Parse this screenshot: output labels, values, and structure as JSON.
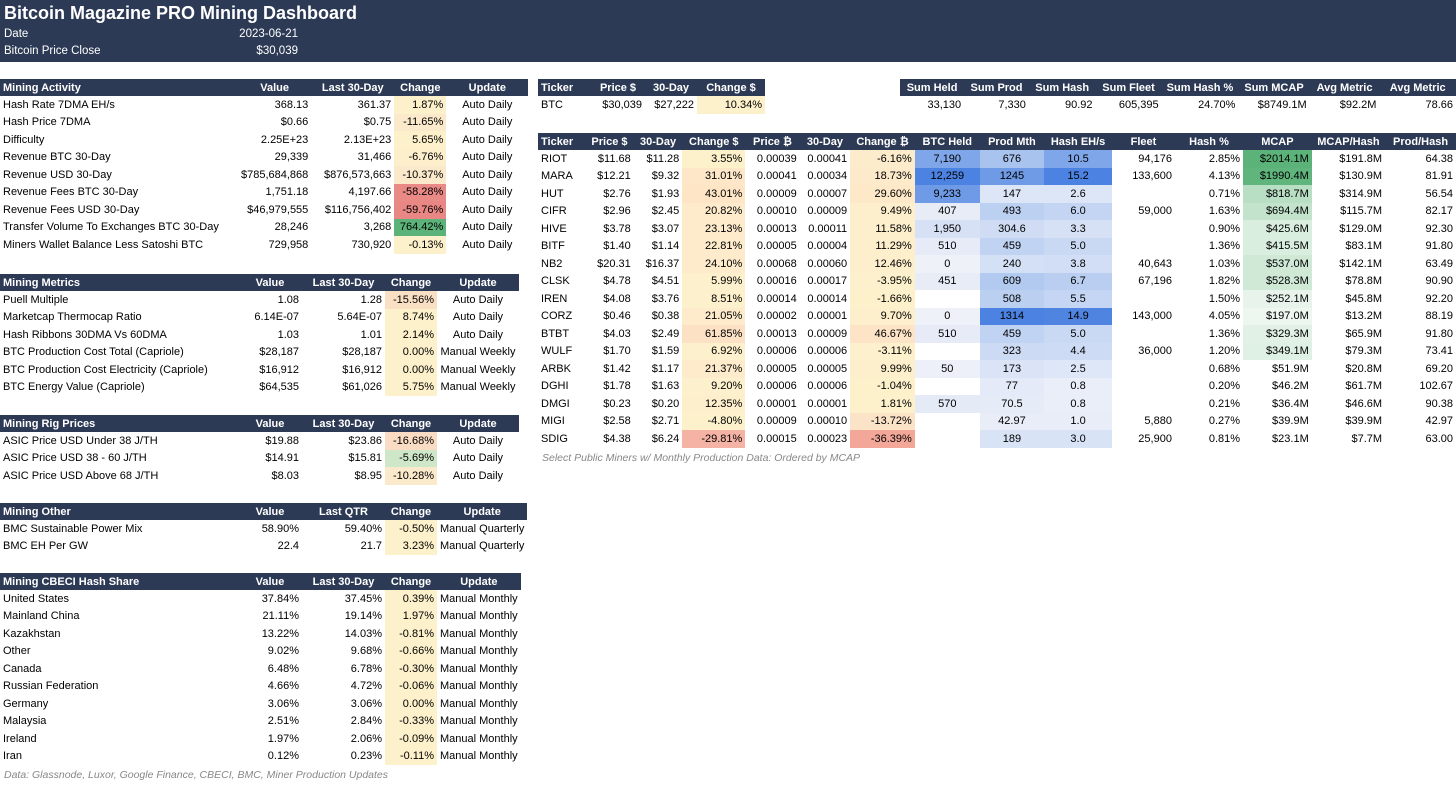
{
  "header": {
    "title": "Bitcoin Magazine PRO Mining Dashboard",
    "date_label": "Date",
    "date_value": "2023-06-21",
    "price_label": "Bitcoin Price Close",
    "price_value": "$30,039"
  },
  "colors": {
    "header_bg": "#2d3a55",
    "neutral_yellow": "#fdf1cc",
    "positive_green": "#5cb37a",
    "negative_red": "#ea8a87",
    "blue_strong": "#4c82e1",
    "blue_light": "#dde6f7"
  },
  "activity": {
    "headers": [
      "Mining Activity",
      "Value",
      "Last 30-Day",
      "Change",
      "Update"
    ],
    "rows": [
      {
        "name": "Hash Rate 7DMA EH/s",
        "value": "368.13",
        "last": "361.37",
        "change": "1.87%",
        "update": "Auto Daily",
        "bg": "#fdf1cc"
      },
      {
        "name": "Hash Price 7DMA",
        "value": "$0.66",
        "last": "$0.75",
        "change": "-11.65%",
        "update": "Auto Daily",
        "bg": "#fbe9cb"
      },
      {
        "name": "Difficulty",
        "value": "2.25E+23",
        "last": "2.13E+23",
        "change": "5.65%",
        "update": "Auto Daily",
        "bg": "#fdf1cc"
      },
      {
        "name": "Revenue BTC 30-Day",
        "value": "29,339",
        "last": "31,466",
        "change": "-6.76%",
        "update": "Auto Daily",
        "bg": "#fdefcc"
      },
      {
        "name": "Revenue USD 30-Day",
        "value": "$785,684,868",
        "last": "$876,573,663",
        "change": "-10.37%",
        "update": "Auto Daily",
        "bg": "#fbe9cb"
      },
      {
        "name": "Revenue Fees BTC 30-Day",
        "value": "1,751.18",
        "last": "4,197.66",
        "change": "-58.28%",
        "update": "Auto Daily",
        "bg": "#ea8a87"
      },
      {
        "name": "Revenue Fees USD 30-Day",
        "value": "$46,979,555",
        "last": "$116,756,402",
        "change": "-59.76%",
        "update": "Auto Daily",
        "bg": "#e98784"
      },
      {
        "name": "Transfer Volume To Exchanges BTC 30-Day",
        "value": "28,246",
        "last": "3,268",
        "change": "764.42%",
        "update": "Auto Daily",
        "bg": "#5cb37a"
      },
      {
        "name": "Miners Wallet Balance Less Satoshi BTC",
        "value": "729,958",
        "last": "730,920",
        "change": "-0.13%",
        "update": "Auto Daily",
        "bg": "#fdf1cc"
      }
    ]
  },
  "metrics": {
    "headers": [
      "Mining Metrics",
      "Value",
      "Last 30-Day",
      "Change",
      "Update"
    ],
    "rows": [
      {
        "name": "Puell Multiple",
        "value": "1.08",
        "last": "1.28",
        "change": "-15.56%",
        "update": "Auto Daily",
        "bg": "#f9dfc4"
      },
      {
        "name": "Marketcap Thermocap Ratio",
        "value": "6.14E-07",
        "last": "5.64E-07",
        "change": "8.74%",
        "update": "Auto Daily",
        "bg": "#fdf1cc"
      },
      {
        "name": "Hash Ribbons 30DMA Vs 60DMA",
        "value": "1.03",
        "last": "1.01",
        "change": "2.14%",
        "update": "Auto Daily",
        "bg": "#fdf1cc"
      },
      {
        "name": "BTC Production Cost Total (Capriole)",
        "value": "$28,187",
        "last": "$28,187",
        "change": "0.00%",
        "update": "Manual Weekly",
        "bg": "#fdf1cc"
      },
      {
        "name": "BTC Production Cost Electricity (Capriole)",
        "value": "$16,912",
        "last": "$16,912",
        "change": "0.00%",
        "update": "Manual Weekly",
        "bg": "#fdf1cc"
      },
      {
        "name": "BTC Energy Value (Capriole)",
        "value": "$64,535",
        "last": "$61,026",
        "change": "5.75%",
        "update": "Manual Weekly",
        "bg": "#fdf1cc"
      }
    ]
  },
  "rigs": {
    "headers": [
      "Mining Rig Prices",
      "Value",
      "Last 30-Day",
      "Change",
      "Update"
    ],
    "rows": [
      {
        "name": "ASIC Price USD Under 38 J/TH",
        "value": "$19.88",
        "last": "$23.86",
        "change": "-16.68%",
        "update": "Auto Daily",
        "bg": "#f9dcc3"
      },
      {
        "name": "ASIC Price USD 38 - 60 J/TH",
        "value": "$14.91",
        "last": "$15.81",
        "change": "-5.69%",
        "update": "Auto Daily",
        "bg": "#cfe7c9"
      },
      {
        "name": "ASIC Price USD Above 68 J/TH",
        "value": "$8.03",
        "last": "$8.95",
        "change": "-10.28%",
        "update": "Auto Daily",
        "bg": "#fbe9cb"
      }
    ]
  },
  "other": {
    "headers": [
      "Mining Other",
      "Value",
      "Last QTR",
      "Change",
      "Update"
    ],
    "rows": [
      {
        "name": "BMC Sustainable Power Mix",
        "value": "58.90%",
        "last": "59.40%",
        "change": "-0.50%",
        "update": "Manual Quarterly",
        "bg": "#fdf1cc"
      },
      {
        "name": "BMC EH Per GW",
        "value": "22.4",
        "last": "21.7",
        "change": "3.23%",
        "update": "Manual Quarterly",
        "bg": "#fdf1cc"
      }
    ]
  },
  "cbeci": {
    "headers": [
      "Mining CBECI Hash Share",
      "Value",
      "Last 30-Day",
      "Change",
      "Update"
    ],
    "rows": [
      {
        "name": "United States",
        "value": "37.84%",
        "last": "37.45%",
        "change": "0.39%",
        "update": "Manual Monthly",
        "bg": "#fdf1cc"
      },
      {
        "name": "Mainland China",
        "value": "21.11%",
        "last": "19.14%",
        "change": "1.97%",
        "update": "Manual Monthly",
        "bg": "#fdf1cc"
      },
      {
        "name": "Kazakhstan",
        "value": "13.22%",
        "last": "14.03%",
        "change": "-0.81%",
        "update": "Manual Monthly",
        "bg": "#fdf1cc"
      },
      {
        "name": "Other",
        "value": "9.02%",
        "last": "9.68%",
        "change": "-0.66%",
        "update": "Manual Monthly",
        "bg": "#fdf1cc"
      },
      {
        "name": "Canada",
        "value": "6.48%",
        "last": "6.78%",
        "change": "-0.30%",
        "update": "Manual Monthly",
        "bg": "#fdf1cc"
      },
      {
        "name": "Russian Federation",
        "value": "4.66%",
        "last": "4.72%",
        "change": "-0.06%",
        "update": "Manual Monthly",
        "bg": "#fdf1cc"
      },
      {
        "name": "Germany",
        "value": "3.06%",
        "last": "3.06%",
        "change": "0.00%",
        "update": "Manual Monthly",
        "bg": "#fdf1cc"
      },
      {
        "name": "Malaysia",
        "value": "2.51%",
        "last": "2.84%",
        "change": "-0.33%",
        "update": "Manual Monthly",
        "bg": "#fdf1cc"
      },
      {
        "name": "Ireland",
        "value": "1.97%",
        "last": "2.06%",
        "change": "-0.09%",
        "update": "Manual Monthly",
        "bg": "#fdf1cc"
      },
      {
        "name": "Iran",
        "value": "0.12%",
        "last": "0.23%",
        "change": "-0.11%",
        "update": "Manual Monthly",
        "bg": "#fdf1cc"
      }
    ]
  },
  "left_note": "Data: Glassnode, Luxor, Google Finance, CBECI, BMC, Miner Production Updates",
  "btc_table": {
    "headers": [
      "Ticker",
      "Price $",
      "30-Day",
      "Change $"
    ],
    "row": {
      "ticker": "BTC",
      "price": "$30,039",
      "d30": "$27,222",
      "change": "10.34%",
      "bg": "#fdf1cc"
    }
  },
  "sums": {
    "headers": [
      "Sum Held",
      "Sum Prod",
      "Sum Hash",
      "Sum Fleet",
      "Sum Hash %",
      "Sum MCAP",
      "Avg Metric",
      "Avg Metric"
    ],
    "values": [
      "33,130",
      "7,330",
      "90.92",
      "605,395",
      "24.70%",
      "$8749.1M",
      "$92.2M",
      "78.66"
    ]
  },
  "miners": {
    "headers": [
      "Ticker",
      "Price $",
      "30-Day",
      "Change $",
      "Price ₿",
      "30-Day",
      "Change ₿",
      "BTC Held",
      "Prod Mth",
      "Hash EH/s",
      "Fleet",
      "Hash %",
      "MCAP",
      "MCAP/Hash",
      "Prod/Hash"
    ],
    "rows": [
      {
        "c": [
          "RIOT",
          "$11.68",
          "$11.28",
          "3.55%",
          "0.00039",
          "0.00041",
          "-6.16%",
          "7,190",
          "676",
          "10.5",
          "94,176",
          "2.85%",
          "$2014.1M",
          "$191.8M",
          "64.38"
        ],
        "chg_usd_bg": "#fdf1cc",
        "chg_btc_bg": "#fdeccc",
        "held_bg": "#7fa6e8",
        "prod_bg": "#a9c3ef",
        "hash_bg": "#7fa6e8",
        "mcap_bg": "#5cb37a"
      },
      {
        "c": [
          "MARA",
          "$12.21",
          "$9.32",
          "31.01%",
          "0.00041",
          "0.00034",
          "18.73%",
          "12,259",
          "1245",
          "15.2",
          "133,600",
          "4.13%",
          "$1990.4M",
          "$130.9M",
          "81.91"
        ],
        "chg_usd_bg": "#fde7c8",
        "chg_btc_bg": "#fdeacb",
        "held_bg": "#4c82e1",
        "prod_bg": "#6f9ae5",
        "hash_bg": "#4c82e1",
        "mcap_bg": "#60b57d"
      },
      {
        "c": [
          "HUT",
          "$2.76",
          "$1.93",
          "43.01%",
          "0.00009",
          "0.00007",
          "29.60%",
          "9,233",
          "147",
          "2.6",
          "",
          "0.71%",
          "$818.7M",
          "$314.9M",
          "56.54"
        ],
        "chg_usd_bg": "#fde5c6",
        "chg_btc_bg": "#fde8c8",
        "held_bg": "#6f9ae5",
        "prod_bg": "#dde6f7",
        "hash_bg": "#dde6f7",
        "mcap_bg": "#b8dec4"
      },
      {
        "c": [
          "CIFR",
          "$2.96",
          "$2.45",
          "20.82%",
          "0.00010",
          "0.00009",
          "9.49%",
          "407",
          "493",
          "6.0",
          "59,000",
          "1.63%",
          "$694.4M",
          "$115.7M",
          "82.17"
        ],
        "chg_usd_bg": "#fdebcb",
        "chg_btc_bg": "#fdefcc",
        "held_bg": "#e7ecf7",
        "prod_bg": "#bcd0f2",
        "hash_bg": "#c3d5f3",
        "mcap_bg": "#c3e3cd"
      },
      {
        "c": [
          "HIVE",
          "$3.78",
          "$3.07",
          "23.13%",
          "0.00013",
          "0.00011",
          "11.58%",
          "1,950",
          "304.6",
          "3.3",
          "",
          "0.90%",
          "$425.6M",
          "$129.0M",
          "92.30"
        ],
        "chg_usd_bg": "#fdebcb",
        "chg_btc_bg": "#fdeecc",
        "held_bg": "#d6e1f5",
        "prod_bg": "#cfdcf4",
        "hash_bg": "#d6e1f5",
        "mcap_bg": "#d9eedf"
      },
      {
        "c": [
          "BITF",
          "$1.40",
          "$1.14",
          "22.81%",
          "0.00005",
          "0.00004",
          "11.29%",
          "510",
          "459",
          "5.0",
          "",
          "1.36%",
          "$415.5M",
          "$83.1M",
          "91.80"
        ],
        "chg_usd_bg": "#fdebcb",
        "chg_btc_bg": "#fdeecc",
        "held_bg": "#e6ebf7",
        "prod_bg": "#c0d3f2",
        "hash_bg": "#c9d9f3",
        "mcap_bg": "#daeee0"
      },
      {
        "c": [
          "NB2",
          "$20.31",
          "$16.37",
          "24.10%",
          "0.00068",
          "0.00060",
          "12.46%",
          "0",
          "240",
          "3.8",
          "40,643",
          "1.03%",
          "$537.0M",
          "$142.1M",
          "63.49"
        ],
        "chg_usd_bg": "#fdebcb",
        "chg_btc_bg": "#fdeecc",
        "held_bg": "#eef1f8",
        "prod_bg": "#d4e0f5",
        "hash_bg": "#d2def5",
        "mcap_bg": "#cfe9d6"
      },
      {
        "c": [
          "CLSK",
          "$4.78",
          "$4.51",
          "5.99%",
          "0.00016",
          "0.00017",
          "-3.95%",
          "451",
          "609",
          "6.7",
          "67,196",
          "1.82%",
          "$528.3M",
          "$78.8M",
          "90.90"
        ],
        "chg_usd_bg": "#fdf0cc",
        "chg_btc_bg": "#fdf0cc",
        "held_bg": "#e7ecf7",
        "prod_bg": "#b2caf0",
        "hash_bg": "#b9cef1",
        "mcap_bg": "#d0e9d7"
      },
      {
        "c": [
          "IREN",
          "$4.08",
          "$3.76",
          "8.51%",
          "0.00014",
          "0.00014",
          "-1.66%",
          "",
          "508",
          "5.5",
          "",
          "1.50%",
          "$252.1M",
          "$45.8M",
          "92.20"
        ],
        "chg_usd_bg": "#fdf0cc",
        "chg_btc_bg": "#fdf1cc",
        "held_bg": "#ffffff",
        "prod_bg": "#bbcff1",
        "hash_bg": "#c4d6f3",
        "mcap_bg": "#e8f4eb"
      },
      {
        "c": [
          "CORZ",
          "$0.46",
          "$0.38",
          "21.05%",
          "0.00002",
          "0.00001",
          "9.70%",
          "0",
          "1314",
          "14.9",
          "143,000",
          "4.05%",
          "$197.0M",
          "$13.2M",
          "88.19"
        ],
        "chg_usd_bg": "#fdebcb",
        "chg_btc_bg": "#fdefcc",
        "held_bg": "#eef1f8",
        "prod_bg": "#4c82e1",
        "hash_bg": "#4f84e1",
        "mcap_bg": "#edf6ef"
      },
      {
        "c": [
          "BTBT",
          "$4.03",
          "$2.49",
          "61.85%",
          "0.00013",
          "0.00009",
          "46.67%",
          "510",
          "459",
          "5.0",
          "",
          "1.36%",
          "$329.3M",
          "$65.9M",
          "91.80"
        ],
        "chg_usd_bg": "#fce1c4",
        "chg_btc_bg": "#fde4c6",
        "held_bg": "#e6ebf7",
        "prod_bg": "#c0d3f2",
        "hash_bg": "#c9d9f3",
        "mcap_bg": "#e1f1e6"
      },
      {
        "c": [
          "WULF",
          "$1.70",
          "$1.59",
          "6.92%",
          "0.00006",
          "0.00006",
          "-3.11%",
          "",
          "323",
          "4.4",
          "36,000",
          "1.20%",
          "$349.1M",
          "$79.3M",
          "73.41"
        ],
        "chg_usd_bg": "#fdf0cc",
        "chg_btc_bg": "#fdf0cc",
        "held_bg": "#ffffff",
        "prod_bg": "#ccdaf4",
        "hash_bg": "#cddbf4",
        "mcap_bg": "#dff0e4"
      },
      {
        "c": [
          "ARBK",
          "$1.42",
          "$1.17",
          "21.37%",
          "0.00005",
          "0.00005",
          "9.99%",
          "50",
          "173",
          "2.5",
          "",
          "0.68%",
          "$51.9M",
          "$20.8M",
          "69.20"
        ],
        "chg_usd_bg": "#fdebcb",
        "chg_btc_bg": "#fdefcc",
        "held_bg": "#edf0f8",
        "prod_bg": "#dae4f6",
        "hash_bg": "#dee7f7",
        "mcap_bg": "#ffffff"
      },
      {
        "c": [
          "DGHI",
          "$1.78",
          "$1.63",
          "9.20%",
          "0.00006",
          "0.00006",
          "-1.04%",
          "",
          "77",
          "0.8",
          "",
          "0.20%",
          "$46.2M",
          "$61.7M",
          "102.67"
        ],
        "chg_usd_bg": "#fdf0cc",
        "chg_btc_bg": "#fdf1cc",
        "held_bg": "#ffffff",
        "prod_bg": "#e4eaf7",
        "hash_bg": "#eaeef8",
        "mcap_bg": "#ffffff"
      },
      {
        "c": [
          "DMGI",
          "$0.23",
          "$0.20",
          "12.35%",
          "0.00001",
          "0.00001",
          "1.81%",
          "570",
          "70.5",
          "0.8",
          "",
          "0.21%",
          "$36.4M",
          "$46.6M",
          "90.38"
        ],
        "chg_usd_bg": "#fdeecc",
        "chg_btc_bg": "#fdf1cc",
        "held_bg": "#e5eaf7",
        "prod_bg": "#e5ebf7",
        "hash_bg": "#eaeef8",
        "mcap_bg": "#ffffff"
      },
      {
        "c": [
          "MIGI",
          "$2.58",
          "$2.71",
          "-4.80%",
          "0.00009",
          "0.00010",
          "-13.72%",
          "",
          "42.97",
          "1.0",
          "5,880",
          "0.27%",
          "$39.9M",
          "$39.9M",
          "42.97"
        ],
        "chg_usd_bg": "#fdf1cc",
        "chg_btc_bg": "#fbe3c8",
        "held_bg": "#ffffff",
        "prod_bg": "#e8edf8",
        "hash_bg": "#e8edf8",
        "mcap_bg": "#ffffff"
      },
      {
        "c": [
          "SDIG",
          "$4.38",
          "$6.24",
          "-29.81%",
          "0.00015",
          "0.00023",
          "-36.39%",
          "",
          "189",
          "3.0",
          "25,900",
          "0.81%",
          "$23.1M",
          "$7.7M",
          "63.00"
        ],
        "chg_usd_bg": "#f4b3a5",
        "chg_btc_bg": "#f2a799",
        "held_bg": "#ffffff",
        "prod_bg": "#d9e3f6",
        "hash_bg": "#d9e3f6",
        "mcap_bg": "#ffffff"
      }
    ]
  },
  "right_note": "Select Public Miners w/ Monthly Production Data: Ordered by MCAP"
}
